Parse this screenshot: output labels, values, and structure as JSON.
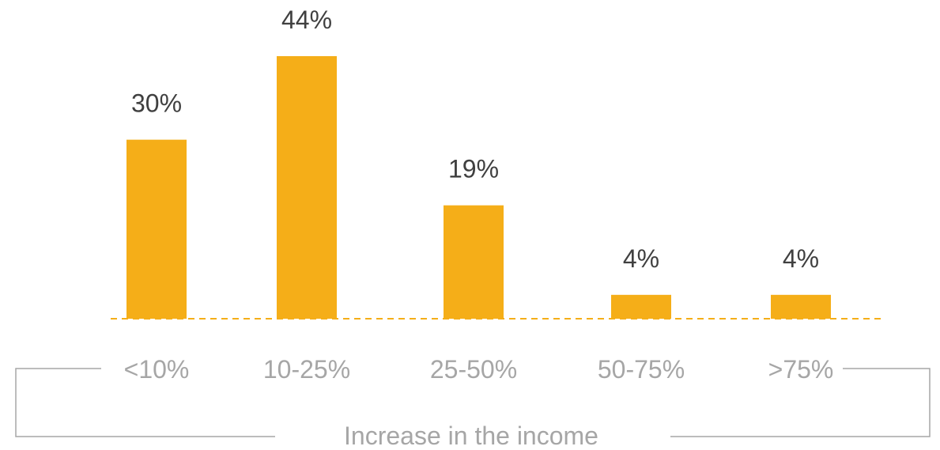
{
  "chart_data": {
    "type": "bar",
    "categories": [
      "<10%",
      "10-25%",
      "25-50%",
      "50-75%",
      ">75%"
    ],
    "values": [
      30,
      44,
      19,
      4,
      4
    ],
    "data_labels": [
      "30%",
      "44%",
      "19%",
      "4%",
      "4%"
    ],
    "xlabel": "Increase in the income",
    "ylabel": "",
    "ylim": [
      0,
      44
    ],
    "grid": false,
    "legend": "none",
    "colors": {
      "bar": "#F5AE18",
      "baseline": "#F5AE18",
      "value_label": "#404040",
      "tick_label": "#A6A6A6",
      "axis_title": "#A6A6A6",
      "bracket": "#A6A6A6"
    }
  }
}
